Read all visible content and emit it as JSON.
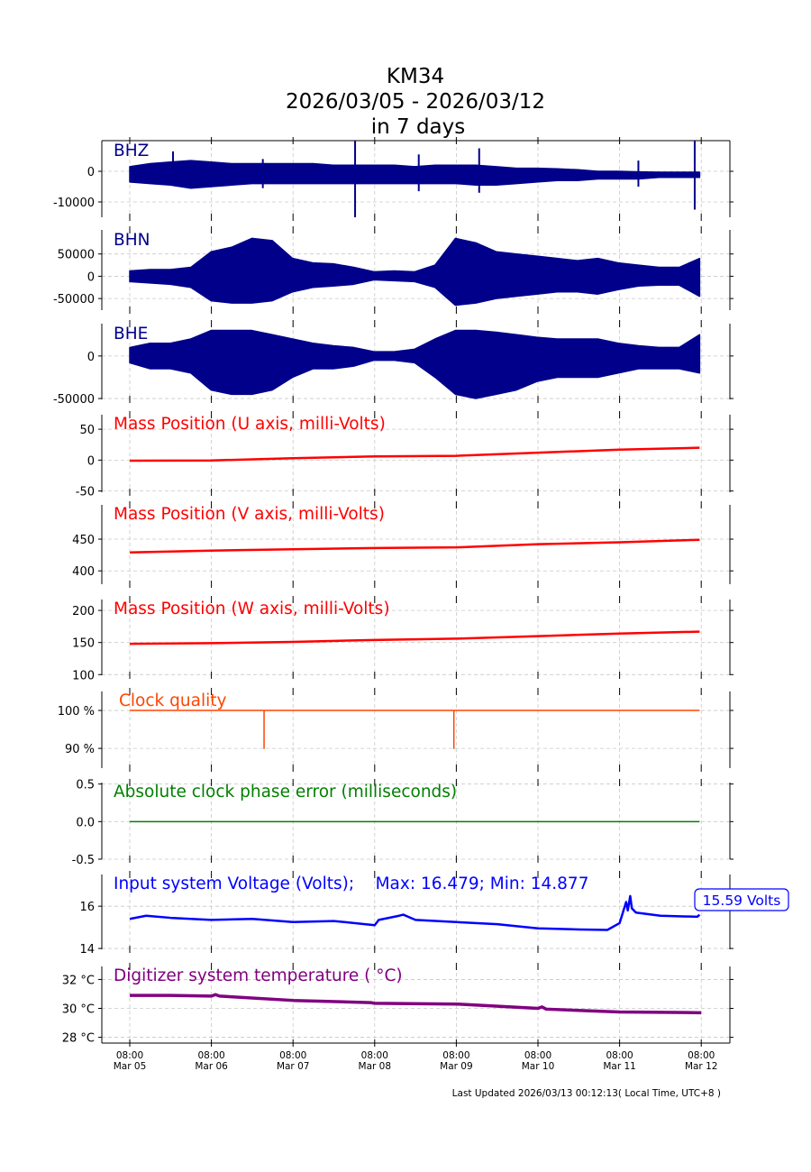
{
  "chart_data": {
    "type": "line",
    "title": [
      "KM34",
      "2026/03/05 - 2026/03/12",
      "in 7 days"
    ],
    "x_unit": "days since Mar 05 08:00 (local time)",
    "xlim": [
      -0.34,
      7.35
    ],
    "xticks": [
      0,
      1,
      2,
      3,
      4,
      5,
      6,
      7
    ],
    "xtick_labels": [
      [
        "08:00",
        "Mar 05"
      ],
      [
        "08:00",
        "Mar 06"
      ],
      [
        "08:00",
        "Mar 07"
      ],
      [
        "08:00",
        "Mar 08"
      ],
      [
        "08:00",
        "Mar 09"
      ],
      [
        "08:00",
        "Mar 10"
      ],
      [
        "08:00",
        "Mar 11"
      ],
      [
        "08:00",
        "Mar 12"
      ]
    ],
    "grid": true,
    "footer": "Last Updated 2026/03/13 00:12:13( Local Time, UTC+8 )",
    "panels": [
      {
        "name": "bhz",
        "label": "BHZ",
        "color": "#00008b",
        "kind": "envelope",
        "ylim": [
          -15000,
          10000
        ],
        "yticks": [
          0,
          -10000
        ],
        "ytick_labels": [
          "0",
          "-10000"
        ],
        "upper": [
          1500,
          2500,
          3000,
          3500,
          3000,
          2500,
          2500,
          2500,
          2500,
          2500,
          2000,
          2000,
          2000,
          2000,
          1500,
          2000,
          2000,
          2000,
          1500,
          1000,
          1000,
          800,
          500,
          0,
          0,
          -200,
          -300,
          -300,
          -300
        ],
        "lower": [
          -3500,
          -4000,
          -4500,
          -5500,
          -5000,
          -4500,
          -4000,
          -4000,
          -4000,
          -4000,
          -4000,
          -4000,
          -4000,
          -4000,
          -4000,
          -4000,
          -4000,
          -4500,
          -4500,
          -4000,
          -3500,
          -3000,
          -3000,
          -2500,
          -2500,
          -2500,
          -2000,
          -2000,
          -2000
        ],
        "spikes": [
          {
            "x": 0.53,
            "max": 6500,
            "min": -4000
          },
          {
            "x": 1.63,
            "max": 4000,
            "min": -5500
          },
          {
            "x": 2.76,
            "max": 10000,
            "min": -15000
          },
          {
            "x": 3.54,
            "max": 5500,
            "min": -6500
          },
          {
            "x": 4.28,
            "max": 7500,
            "min": -7000
          },
          {
            "x": 6.23,
            "max": 3500,
            "min": -5000
          },
          {
            "x": 6.92,
            "max": 10000,
            "min": -12500
          }
        ]
      },
      {
        "name": "bhn",
        "label": "BHN",
        "color": "#00008b",
        "kind": "envelope",
        "ylim": [
          -76000,
          104000
        ],
        "yticks": [
          50000,
          0,
          -50000
        ],
        "ytick_labels": [
          "50000",
          "0",
          "-50000"
        ],
        "upper": [
          12000,
          15000,
          15000,
          20000,
          55000,
          65000,
          85000,
          80000,
          40000,
          30000,
          28000,
          20000,
          10000,
          12000,
          10000,
          25000,
          85000,
          75000,
          55000,
          50000,
          45000,
          40000,
          35000,
          40000,
          30000,
          25000,
          20000,
          20000,
          40000
        ],
        "lower": [
          -12000,
          -15000,
          -18000,
          -25000,
          -55000,
          -60000,
          -60000,
          -55000,
          -35000,
          -25000,
          -22000,
          -18000,
          -8000,
          -10000,
          -12000,
          -25000,
          -65000,
          -60000,
          -50000,
          -45000,
          -40000,
          -35000,
          -35000,
          -40000,
          -30000,
          -22000,
          -20000,
          -20000,
          -45000
        ],
        "spikes": []
      },
      {
        "name": "bhe",
        "label": "BHE",
        "color": "#00008b",
        "kind": "envelope",
        "ylim": [
          -51000,
          38000
        ],
        "yticks": [
          0,
          -50000
        ],
        "ytick_labels": [
          "0",
          "-50000"
        ],
        "upper": [
          10000,
          15000,
          15000,
          20000,
          30000,
          30000,
          30000,
          25000,
          20000,
          15000,
          12000,
          10000,
          5000,
          5000,
          8000,
          20000,
          30000,
          30000,
          28000,
          25000,
          22000,
          20000,
          20000,
          20000,
          15000,
          12000,
          10000,
          10000,
          25000
        ],
        "lower": [
          -8000,
          -15000,
          -15000,
          -20000,
          -40000,
          -45000,
          -45000,
          -40000,
          -25000,
          -15000,
          -15000,
          -12000,
          -5000,
          -5000,
          -8000,
          -25000,
          -45000,
          -50000,
          -45000,
          -40000,
          -30000,
          -25000,
          -25000,
          -25000,
          -20000,
          -15000,
          -15000,
          -15000,
          -20000
        ],
        "spikes": []
      },
      {
        "name": "mass-u",
        "label": "Mass Position (U axis, milli-Volts)",
        "color": "#ff0000",
        "kind": "line",
        "ylim": [
          -52,
          73.5
        ],
        "yticks": [
          50,
          0,
          -50
        ],
        "ytick_labels": [
          "50",
          "0",
          "-50"
        ],
        "x": [
          0,
          1,
          2,
          3,
          4,
          5,
          6,
          6.98
        ],
        "y": [
          -1,
          -0.5,
          3,
          6,
          7,
          12,
          17,
          20
        ]
      },
      {
        "name": "mass-v",
        "label": "Mass Position (V axis, milli-Volts)",
        "color": "#ff0000",
        "kind": "line",
        "ylim": [
          379,
          504
        ],
        "yticks": [
          450,
          400
        ],
        "ytick_labels": [
          "450",
          "400"
        ],
        "x": [
          0,
          1,
          2,
          3,
          4,
          5,
          6,
          6.98
        ],
        "y": [
          429,
          432,
          434,
          436,
          437,
          442,
          445,
          449
        ]
      },
      {
        "name": "mass-w",
        "label": "Mass Position (W axis, milli-Volts)",
        "color": "#ff0000",
        "kind": "line",
        "ylim": [
          99,
          217
        ],
        "yticks": [
          200,
          150,
          100
        ],
        "ytick_labels": [
          "200",
          "150",
          "100"
        ],
        "x": [
          0,
          1,
          2,
          3,
          4,
          5,
          6,
          6.98
        ],
        "y": [
          148,
          149,
          151,
          154,
          156,
          160,
          164,
          167
        ]
      },
      {
        "name": "clock-quality",
        "label": "Clock quality",
        "color": "#ff4500",
        "kind": "line",
        "ylim": [
          84.8,
          105
        ],
        "yticks": [
          100,
          90
        ],
        "ytick_labels": [
          "100 %",
          "90 %"
        ],
        "x": [
          0,
          1.645,
          1.645,
          1.645,
          3.97,
          3.97,
          3.97,
          6.98
        ],
        "y": [
          100,
          100,
          90,
          100,
          100,
          90,
          100,
          100
        ]
      },
      {
        "name": "clock-phase-error",
        "label": "Absolute clock phase error (milliseconds)",
        "color": "#008000",
        "kind": "line",
        "ylim": [
          -0.5,
          0.52
        ],
        "yticks": [
          0.5,
          0.0,
          -0.5
        ],
        "ytick_labels": [
          "0.5",
          "0.0",
          "-0.5"
        ],
        "x": [
          0,
          6.98
        ],
        "y": [
          0,
          0
        ]
      },
      {
        "name": "input-voltage",
        "label": "Input system Voltage (Volts);    Max: 16.479; Min: 14.877",
        "color": "#0000ff",
        "kind": "line",
        "ylim": [
          13.96,
          17.5
        ],
        "yticks": [
          16,
          14
        ],
        "ytick_labels": [
          "16",
          "14"
        ],
        "x": [
          0,
          0.2,
          0.5,
          1,
          1.5,
          2,
          2.5,
          3,
          3.05,
          3.3,
          3.35,
          3.5,
          4,
          4.5,
          5,
          5.5,
          5.85,
          6.0,
          6.08,
          6.1,
          6.13,
          6.15,
          6.2,
          6.5,
          6.95,
          6.98
        ],
        "y": [
          15.4,
          15.55,
          15.45,
          15.35,
          15.4,
          15.25,
          15.3,
          15.1,
          15.35,
          15.55,
          15.6,
          15.35,
          15.25,
          15.15,
          14.95,
          14.9,
          14.877,
          15.2,
          16.2,
          15.8,
          16.479,
          15.9,
          15.7,
          15.55,
          15.5,
          15.59
        ],
        "annotation": "15.59 Volts"
      },
      {
        "name": "digitizer-temperature",
        "label": "Digitizer system temperature ( °C)",
        "color": "#800080",
        "kind": "line",
        "ylim": [
          27.6,
          32.9
        ],
        "yticks": [
          32,
          30,
          28
        ],
        "ytick_labels": [
          "32 °C",
          "30 °C",
          "28 °C"
        ],
        "x": [
          0,
          0.5,
          1,
          1.05,
          1.1,
          2,
          2.95,
          3,
          4,
          5,
          5.05,
          5.1,
          6,
          7
        ],
        "y": [
          30.9,
          30.9,
          30.85,
          30.95,
          30.85,
          30.55,
          30.4,
          30.35,
          30.3,
          30.0,
          30.1,
          29.95,
          29.75,
          29.7
        ]
      }
    ]
  }
}
